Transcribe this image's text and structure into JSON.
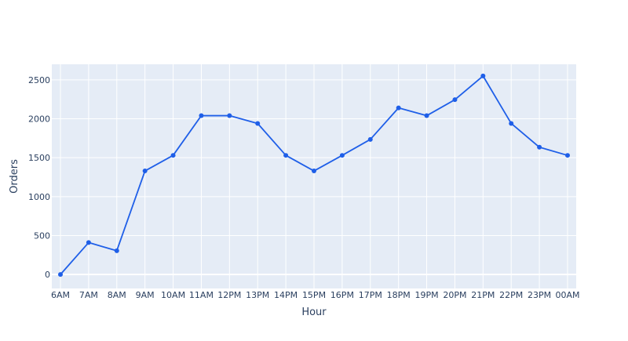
{
  "chart_data": {
    "type": "line",
    "categories": [
      "6AM",
      "7AM",
      "8AM",
      "9AM",
      "10AM",
      "11AM",
      "12PM",
      "13PM",
      "14PM",
      "15PM",
      "16PM",
      "17PM",
      "18PM",
      "19PM",
      "20PM",
      "21PM",
      "22PM",
      "23PM",
      "00AM"
    ],
    "series": [
      {
        "values": [
          0,
          410,
          305,
          1330,
          1530,
          2040,
          2040,
          1940,
          1530,
          1330,
          1530,
          1735,
          2140,
          2040,
          2245,
          2550,
          1940,
          1635,
          1530
        ]
      }
    ],
    "xlabel": "Hour",
    "ylabel": "Orders",
    "ylim": [
      -180,
      2700
    ],
    "yticks": [
      0,
      500,
      1000,
      1500,
      2000,
      2500
    ],
    "grid": true,
    "colors": {
      "plot_bg": "#e5ecf6",
      "grid": "#ffffff",
      "line": "#1f5fe8",
      "text": "#2a3f5f"
    }
  }
}
